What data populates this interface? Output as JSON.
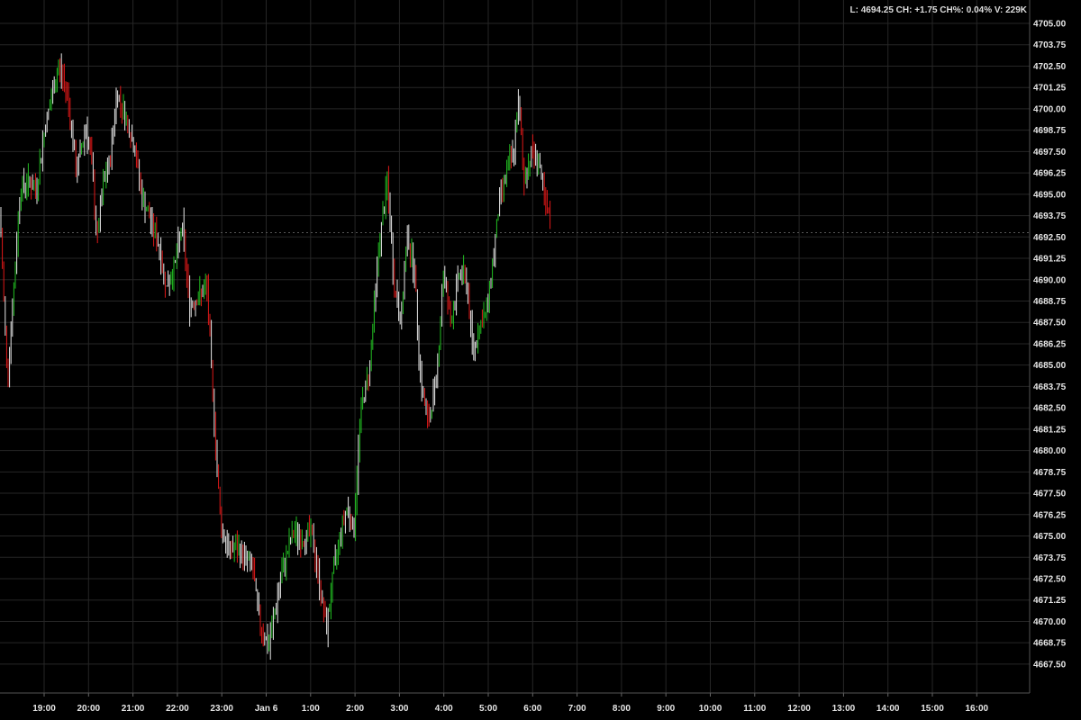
{
  "status": {
    "text": "L: 4694.25 CH: +1.75 CH%: 0.04% V: 229K"
  },
  "colors": {
    "up": "#22c022",
    "down": "#e01818",
    "neutral": "#e8e8e8",
    "grid": "#262626",
    "background": "#000000"
  },
  "chart_data": {
    "type": "line",
    "style": "OHLC bars (intraday)",
    "grid": true,
    "ylim": [
      4667.5,
      4705.0
    ],
    "y_ticks": [
      "4705.00",
      "4703.75",
      "4702.50",
      "4701.25",
      "4700.00",
      "4698.75",
      "4697.50",
      "4696.25",
      "4695.00",
      "4693.75",
      "4692.50",
      "4691.25",
      "4690.00",
      "4688.75",
      "4687.50",
      "4686.25",
      "4685.00",
      "4683.75",
      "4682.50",
      "4681.25",
      "4680.00",
      "4678.75",
      "4677.50",
      "4676.25",
      "4675.00",
      "4673.75",
      "4672.50",
      "4671.25",
      "4670.00",
      "4668.75",
      "4667.50"
    ],
    "x_ticks": [
      "19:00",
      "20:00",
      "21:00",
      "22:00",
      "23:00",
      "Jan 6",
      "1:00",
      "2:00",
      "3:00",
      "4:00",
      "5:00",
      "6:00",
      "7:00",
      "8:00",
      "9:00",
      "10:00",
      "11:00",
      "12:00",
      "13:00",
      "14:00",
      "15:00",
      "16:00"
    ],
    "xlim": [
      "18:00",
      "16:50"
    ],
    "last_price": 4694.25,
    "points": [
      [
        "18:00",
        4693.75
      ],
      [
        "18:10",
        4684.25
      ],
      [
        "18:18",
        4689.0
      ],
      [
        "18:27",
        4695.25
      ],
      [
        "18:37",
        4695.75
      ],
      [
        "18:49",
        4695.25
      ],
      [
        "19:01",
        4699.0
      ],
      [
        "19:13",
        4701.25
      ],
      [
        "19:19",
        4702.5
      ],
      [
        "19:31",
        4701.0
      ],
      [
        "19:43",
        4696.25
      ],
      [
        "19:56",
        4699.0
      ],
      [
        "20:04",
        4696.75
      ],
      [
        "20:11",
        4692.25
      ],
      [
        "20:20",
        4695.75
      ],
      [
        "20:28",
        4696.75
      ],
      [
        "20:38",
        4701.0
      ],
      [
        "20:50",
        4699.5
      ],
      [
        "21:03",
        4697.5
      ],
      [
        "21:12",
        4694.75
      ],
      [
        "21:21",
        4693.75
      ],
      [
        "21:33",
        4692.25
      ],
      [
        "21:45",
        4689.5
      ],
      [
        "21:57",
        4691.0
      ],
      [
        "22:06",
        4693.25
      ],
      [
        "22:16",
        4688.5
      ],
      [
        "22:28",
        4689.0
      ],
      [
        "22:40",
        4689.5
      ],
      [
        "22:46",
        4684.25
      ],
      [
        "22:52",
        4680.0
      ],
      [
        "22:58",
        4675.75
      ],
      [
        "23:07",
        4674.25
      ],
      [
        "23:19",
        4674.25
      ],
      [
        "23:31",
        4673.75
      ],
      [
        "23:41",
        4673.25
      ],
      [
        "23:50",
        4670.0
      ],
      [
        "00:03",
        4668.5
      ],
      [
        "00:11",
        4670.5
      ],
      [
        "00:23",
        4673.25
      ],
      [
        "00:36",
        4675.25
      ],
      [
        "00:48",
        4674.75
      ],
      [
        "01:00",
        4675.25
      ],
      [
        "01:08",
        4673.25
      ],
      [
        "01:21",
        4669.5
      ],
      [
        "01:30",
        4672.75
      ],
      [
        "01:40",
        4675.25
      ],
      [
        "01:49",
        4676.75
      ],
      [
        "01:58",
        4675.25
      ],
      [
        "02:07",
        4682.25
      ],
      [
        "02:19",
        4684.75
      ],
      [
        "02:31",
        4691.5
      ],
      [
        "02:43",
        4695.75
      ],
      [
        "02:53",
        4689.5
      ],
      [
        "03:02",
        4687.5
      ],
      [
        "03:10",
        4692.75
      ],
      [
        "03:20",
        4690.5
      ],
      [
        "03:28",
        4684.25
      ],
      [
        "03:38",
        4681.5
      ],
      [
        "03:50",
        4684.25
      ],
      [
        "03:59",
        4690.5
      ],
      [
        "04:09",
        4687.5
      ],
      [
        "04:21",
        4690.5
      ],
      [
        "04:30",
        4690.0
      ],
      [
        "04:39",
        4685.75
      ],
      [
        "04:49",
        4687.5
      ],
      [
        "04:57",
        4688.0
      ],
      [
        "05:07",
        4691.5
      ],
      [
        "05:15",
        4694.75
      ],
      [
        "05:24",
        4696.25
      ],
      [
        "05:34",
        4697.5
      ],
      [
        "05:41",
        4700.5
      ],
      [
        "05:48",
        4695.75
      ],
      [
        "05:58",
        4697.5
      ],
      [
        "06:08",
        4697.0
      ],
      [
        "06:16",
        4694.25
      ],
      [
        "06:25",
        4693.25
      ]
    ]
  }
}
